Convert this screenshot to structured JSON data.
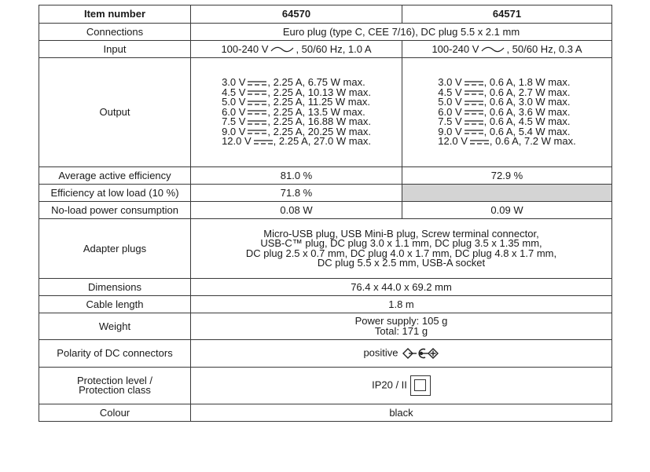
{
  "header": {
    "label": "Item number",
    "a": "64570",
    "b": "64571"
  },
  "connections": {
    "label": "Connections",
    "value": "Euro plug (type C, CEE 7/16), DC plug 5.5 x 2.1 mm"
  },
  "input": {
    "label": "Input",
    "a_pre": "100-240 V",
    "a_post": ", 50/60 Hz, 1.0 A",
    "b_pre": "100-240 V",
    "b_post": ", 50/60 Hz, 0.3 A"
  },
  "output": {
    "label": "Output",
    "a": [
      {
        "v": "3.0 V",
        "rest": ", 2.25 A, 6.75 W max."
      },
      {
        "v": "4.5 V",
        "rest": ", 2.25 A, 10.13 W max."
      },
      {
        "v": "5.0 V",
        "rest": ", 2.25 A, 11.25 W max."
      },
      {
        "v": "6.0 V",
        "rest": ", 2.25 A, 13.5 W max."
      },
      {
        "v": "7.5 V",
        "rest": ", 2.25 A, 16.88 W max."
      },
      {
        "v": "9.0 V",
        "rest": ", 2.25 A, 20.25 W max."
      },
      {
        "v": "12.0 V",
        "rest": ", 2.25 A, 27.0 W max."
      }
    ],
    "b": [
      {
        "v": "3.0 V",
        "rest": ", 0.6 A, 1.8 W max."
      },
      {
        "v": "4.5 V",
        "rest": ", 0.6 A, 2.7 W max."
      },
      {
        "v": "5.0 V",
        "rest": ", 0.6 A, 3.0 W max."
      },
      {
        "v": "6.0 V",
        "rest": ", 0.6 A, 3.6 W max."
      },
      {
        "v": "7.5 V",
        "rest": ", 0.6 A, 4.5 W max."
      },
      {
        "v": "9.0 V",
        "rest": ", 0.6 A, 5.4 W max."
      },
      {
        "v": "12.0 V",
        "rest": ", 0.6 A, 7.2 W max."
      }
    ]
  },
  "efficiency": {
    "label": "Average active efficiency",
    "a": "81.0 %",
    "b": "72.9 %"
  },
  "low_load": {
    "label": "Efficiency at low load (10 %)",
    "a": "71.8 %"
  },
  "no_load": {
    "label": "No-load power consumption",
    "a": "0.08 W",
    "b": "0.09 W"
  },
  "adapter": {
    "label": "Adapter plugs",
    "lines": [
      "Micro-USB plug, USB Mini-B plug, Screw terminal connector,",
      "USB-C™ plug, DC plug 3.0 x 1.1 mm, DC plug 3.5 x 1.35 mm,",
      "DC plug 2.5 x 0.7 mm, DC plug 4.0 x 1.7 mm, DC plug 4.8 x 1.7 mm,",
      "DC plug 5.5 x 2.5 mm, USB-A socket"
    ]
  },
  "dimensions": {
    "label": "Dimensions",
    "value": "76.4 x 44.0 x 69.2 mm"
  },
  "cable": {
    "label": "Cable length",
    "value": "1.8 m"
  },
  "weight": {
    "label": "Weight",
    "line1": "Power supply: 105 g",
    "line2": "Total: 171 g"
  },
  "polarity": {
    "label": "Polarity of DC connectors",
    "value": "positive",
    "icon": "polarity-center-positive-icon"
  },
  "protection": {
    "label1": "Protection level /",
    "label2": "Protection class",
    "value": "IP20 / II",
    "icon": "protection-class-ii-icon"
  },
  "colour": {
    "label": "Colour",
    "value": "black"
  }
}
